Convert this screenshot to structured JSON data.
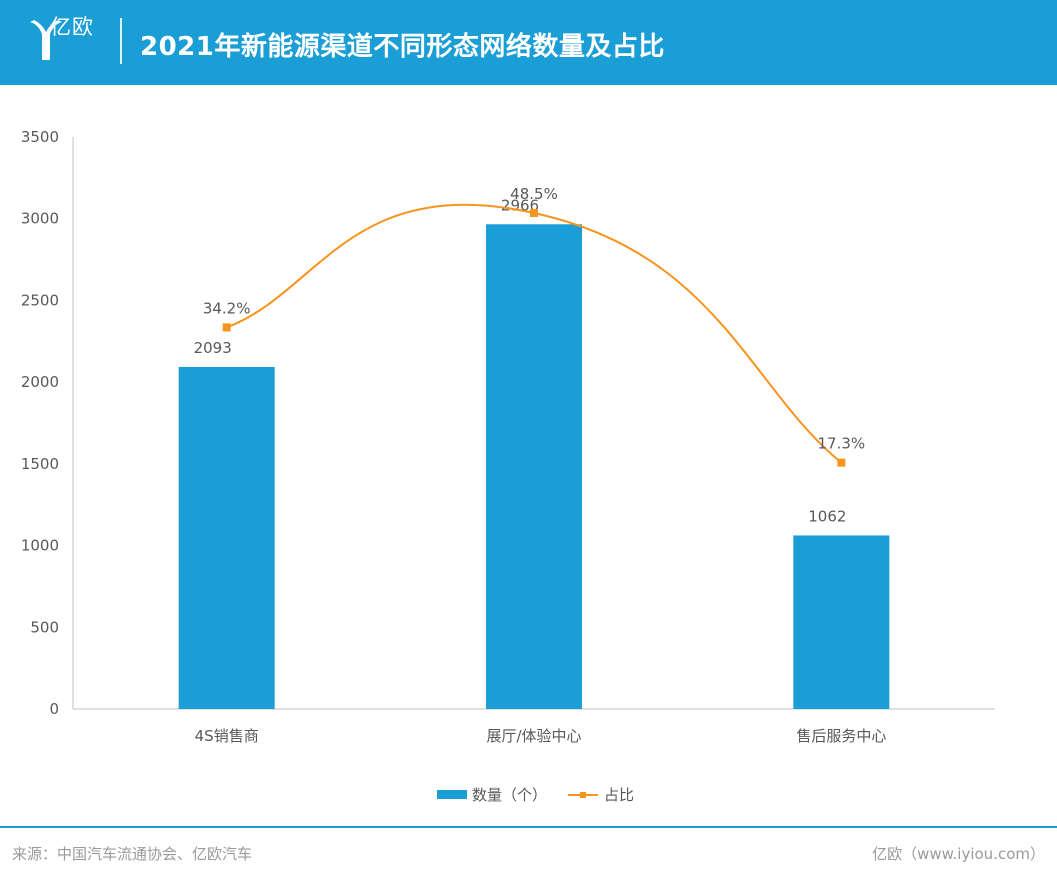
{
  "header": {
    "logo_text": "亿欧",
    "title": "2021年新能源渠道不同形态网络数量及占比"
  },
  "colors": {
    "header_bg": "#1b9ed6",
    "bar": "#1b9ed6",
    "line": "#f7941d",
    "axis": "#595959",
    "text": "#595959"
  },
  "chart_data": {
    "type": "bar",
    "categories": [
      "4S销售商",
      "展厅/体验中心",
      "售后服务中心"
    ],
    "series": [
      {
        "name": "数量（个）",
        "type": "bar",
        "axis": "left",
        "values": [
          2093,
          2966,
          1062
        ],
        "labels": [
          "2093",
          "2966",
          "1062"
        ]
      },
      {
        "name": "占比",
        "type": "line",
        "axis": "right",
        "values": [
          34.2,
          48.5,
          17.3
        ],
        "labels": [
          "34.2%",
          "48.5%",
          "17.3%"
        ]
      }
    ],
    "ylim": [
      0,
      3500
    ],
    "yticks": [
      "0",
      "500",
      "1000",
      "1500",
      "2000",
      "2500",
      "3000",
      "3500"
    ],
    "grid": false,
    "legend_position": "bottom-center"
  },
  "footer": {
    "source": "来源：中国汽车流通协会、亿欧汽车",
    "brand": "亿欧（www.iyiou.com）"
  }
}
